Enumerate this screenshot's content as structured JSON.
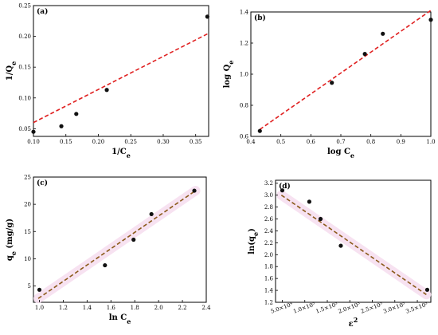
{
  "figure": {
    "fit_line_color": "#e02020",
    "fit_line_color_dark": "#8b5a1a",
    "band_color": "#f7dff0",
    "point_color": "#111111"
  },
  "chart_data": [
    {
      "panel": "(a)",
      "type": "scatter",
      "xlabel": "1/Ce",
      "ylabel": "1/Qe",
      "xlim": [
        0.1,
        0.37
      ],
      "ylim": [
        0.0375,
        0.25
      ],
      "xticks": [
        "0.10",
        "0.15",
        "0.20",
        "0.25",
        "0.30",
        "0.35"
      ],
      "xtick_values": [
        0.1,
        0.15,
        0.2,
        0.25,
        0.3,
        0.35
      ],
      "yticks": [
        "0.05",
        "0.10",
        "0.15",
        "0.20",
        "0.25"
      ],
      "ytick_values": [
        0.05,
        0.1,
        0.15,
        0.2,
        0.25
      ],
      "points": [
        [
          0.1,
          0.045
        ],
        [
          0.143,
          0.054
        ],
        [
          0.166,
          0.074
        ],
        [
          0.213,
          0.113
        ],
        [
          0.368,
          0.232
        ]
      ],
      "fit": [
        [
          0.1,
          0.06
        ],
        [
          0.37,
          0.205
        ]
      ],
      "fit_style": "red"
    },
    {
      "panel": "(b)",
      "type": "scatter",
      "xlabel": "log Ce",
      "ylabel": "log Qe",
      "xlim": [
        0.4,
        1.0
      ],
      "ylim": [
        0.6,
        1.4
      ],
      "xticks": [
        "0.4",
        "0.5",
        "0.6",
        "0.7",
        "0.8",
        "0.9",
        "1.0"
      ],
      "xtick_values": [
        0.4,
        0.5,
        0.6,
        0.7,
        0.8,
        0.9,
        1.0
      ],
      "yticks": [
        "0.6",
        "0.8",
        "1.0",
        "1.2",
        "1.4"
      ],
      "ytick_values": [
        0.6,
        0.8,
        1.0,
        1.2,
        1.4
      ],
      "points": [
        [
          0.43,
          0.635
        ],
        [
          0.67,
          0.945
        ],
        [
          0.78,
          1.13
        ],
        [
          0.84,
          1.26
        ],
        [
          1.0,
          1.35
        ]
      ],
      "fit": [
        [
          0.43,
          0.645
        ],
        [
          1.0,
          1.41
        ]
      ],
      "fit_style": "red"
    },
    {
      "panel": "(c)",
      "type": "scatter",
      "xlabel": "ln Ce",
      "ylabel": "qe (mg/g)",
      "xlim": [
        0.95,
        2.4
      ],
      "ylim": [
        2.0,
        25.0
      ],
      "xticks": [
        "1.0",
        "1.2",
        "1.4",
        "1.6",
        "1.8",
        "2.0",
        "2.2",
        "2.4"
      ],
      "xtick_values": [
        1.0,
        1.2,
        1.4,
        1.6,
        1.8,
        2.0,
        2.2,
        2.4
      ],
      "yticks": [
        "5",
        "10",
        "15",
        "20",
        "25"
      ],
      "ytick_values": [
        5,
        10,
        15,
        20,
        25
      ],
      "points": [
        [
          1.0,
          4.3
        ],
        [
          1.55,
          8.8
        ],
        [
          1.79,
          13.5
        ],
        [
          1.94,
          18.2
        ],
        [
          2.3,
          22.5
        ]
      ],
      "fit": [
        [
          0.99,
          2.7
        ],
        [
          2.31,
          22.5
        ]
      ],
      "fit_style": "brown"
    },
    {
      "panel": "(d)",
      "type": "scatter",
      "xlabel": "ε2",
      "ylabel": "ln(qe)",
      "xlim": [
        35000,
        380000
      ],
      "ylim": [
        1.2,
        3.25
      ],
      "xticks": [
        "5.0×10⁴",
        "1.0×10⁵",
        "1.5×10⁵",
        "2.0×10⁵",
        "2.5×10⁵",
        "3.0×10⁵",
        "3.5×10⁵"
      ],
      "xtick_values": [
        50000,
        100000,
        150000,
        200000,
        250000,
        300000,
        350000
      ],
      "yticks": [
        "1.2",
        "1.4",
        "1.6",
        "1.8",
        "2.0",
        "2.2",
        "2.4",
        "2.6",
        "2.8",
        "3.0",
        "3.2"
      ],
      "ytick_values": [
        1.2,
        1.4,
        1.6,
        1.8,
        2.0,
        2.2,
        2.4,
        2.6,
        2.8,
        3.0,
        3.2
      ],
      "points": [
        [
          50000,
          3.08
        ],
        [
          110000,
          2.89
        ],
        [
          135000,
          2.6
        ],
        [
          180000,
          2.15
        ],
        [
          372000,
          1.41
        ]
      ],
      "fit": [
        [
          48000,
          3.0
        ],
        [
          370000,
          1.33
        ]
      ],
      "fit_style": "brown"
    }
  ]
}
